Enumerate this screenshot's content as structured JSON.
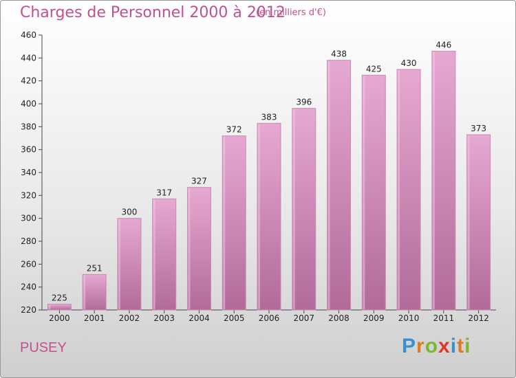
{
  "header": {
    "title": "Charges de Personnel 2000 à 2012",
    "subtitle": "(en milliers d'€)"
  },
  "footer": {
    "city": "PUSEY",
    "logo": "Proxiti"
  },
  "colors": {
    "title": "#c0508f",
    "bar_top": "#e6a9d1",
    "bar_bottom": "#b16b99"
  },
  "chart_data": {
    "type": "bar",
    "title": "Charges de Personnel 2000 à 2012",
    "unit_label": "(en milliers d'€)",
    "xlabel": "",
    "ylabel": "",
    "categories": [
      "2000",
      "2001",
      "2002",
      "2003",
      "2004",
      "2005",
      "2006",
      "2007",
      "2008",
      "2009",
      "2010",
      "2011",
      "2012"
    ],
    "values": [
      225,
      251,
      300,
      317,
      327,
      372,
      383,
      396,
      438,
      425,
      430,
      446,
      373
    ],
    "ylim": [
      220,
      460
    ],
    "yticks": [
      220,
      240,
      260,
      280,
      300,
      320,
      340,
      360,
      380,
      400,
      420,
      440,
      460
    ],
    "grid": false
  }
}
